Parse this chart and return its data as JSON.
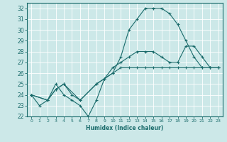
{
  "xlabel": "Humidex (Indice chaleur)",
  "bg_color": "#cce8e8",
  "grid_color": "#b0d8d8",
  "line_color": "#1a6b6b",
  "xlim": [
    -0.5,
    23.5
  ],
  "ylim": [
    22,
    32.5
  ],
  "xticks": [
    0,
    1,
    2,
    3,
    4,
    5,
    6,
    7,
    8,
    9,
    10,
    11,
    12,
    13,
    14,
    15,
    16,
    17,
    18,
    19,
    20,
    21,
    22,
    23
  ],
  "yticks": [
    22,
    23,
    24,
    25,
    26,
    27,
    28,
    29,
    30,
    31,
    32
  ],
  "lines": [
    {
      "x": [
        0,
        1,
        2,
        3,
        4,
        5,
        6,
        7,
        8,
        9,
        10,
        11,
        12,
        13,
        14,
        15,
        16,
        17,
        18,
        19,
        20,
        21,
        22,
        23
      ],
      "y": [
        24,
        23,
        23.5,
        25,
        24,
        23.5,
        23,
        22,
        23.5,
        25.5,
        26,
        27.5,
        30,
        31,
        32,
        32,
        32,
        31.5,
        30.5,
        29,
        27.5,
        26.5,
        26.5,
        26.5
      ]
    },
    {
      "x": [
        0,
        2,
        3,
        4,
        5,
        6,
        8,
        9,
        10,
        11,
        12,
        13,
        14,
        15,
        16,
        17,
        18,
        19,
        20,
        21,
        22,
        23
      ],
      "y": [
        24,
        23.5,
        24.5,
        25,
        24,
        23.5,
        25,
        25.5,
        26.5,
        27,
        27.5,
        28,
        28,
        28,
        27.5,
        27,
        27,
        28.5,
        28.5,
        27.5,
        26.5,
        26.5
      ]
    },
    {
      "x": [
        0,
        2,
        3,
        4,
        6,
        8,
        9,
        10,
        11,
        12,
        13,
        14,
        15,
        16,
        17,
        18,
        19,
        20,
        21,
        22,
        23
      ],
      "y": [
        24,
        23.5,
        24.5,
        25,
        23.5,
        25,
        25.5,
        26,
        26.5,
        26.5,
        26.5,
        26.5,
        26.5,
        26.5,
        26.5,
        26.5,
        26.5,
        26.5,
        26.5,
        26.5,
        26.5
      ]
    }
  ]
}
